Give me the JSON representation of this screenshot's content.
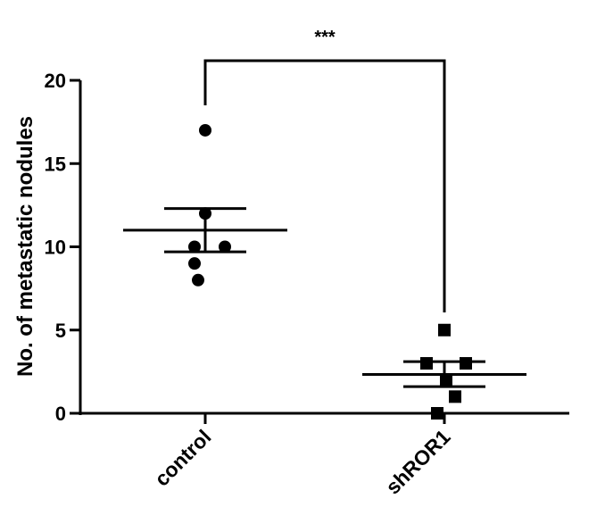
{
  "chart_data": {
    "type": "scatter",
    "ylabel": "No. of metastatic nodules",
    "xlabel": "",
    "ylim": [
      0,
      20
    ],
    "yticks": [
      0,
      5,
      10,
      15,
      20
    ],
    "categories": [
      "control",
      "shROR1"
    ],
    "series": [
      {
        "category": "control",
        "marker": "circle",
        "values": [
          17,
          12,
          10,
          10,
          9,
          8
        ],
        "mean": 11,
        "sem_upper": 12.3,
        "sem_lower": 9.7
      },
      {
        "category": "shROR1",
        "marker": "square",
        "values": [
          5,
          3,
          3,
          2,
          1,
          0
        ],
        "mean": 2.33,
        "sem_upper": 3.1,
        "sem_lower": 1.6
      }
    ],
    "annotation": {
      "text": "***",
      "between": [
        "control",
        "shROR1"
      ]
    },
    "grid": false,
    "legend": "none"
  }
}
